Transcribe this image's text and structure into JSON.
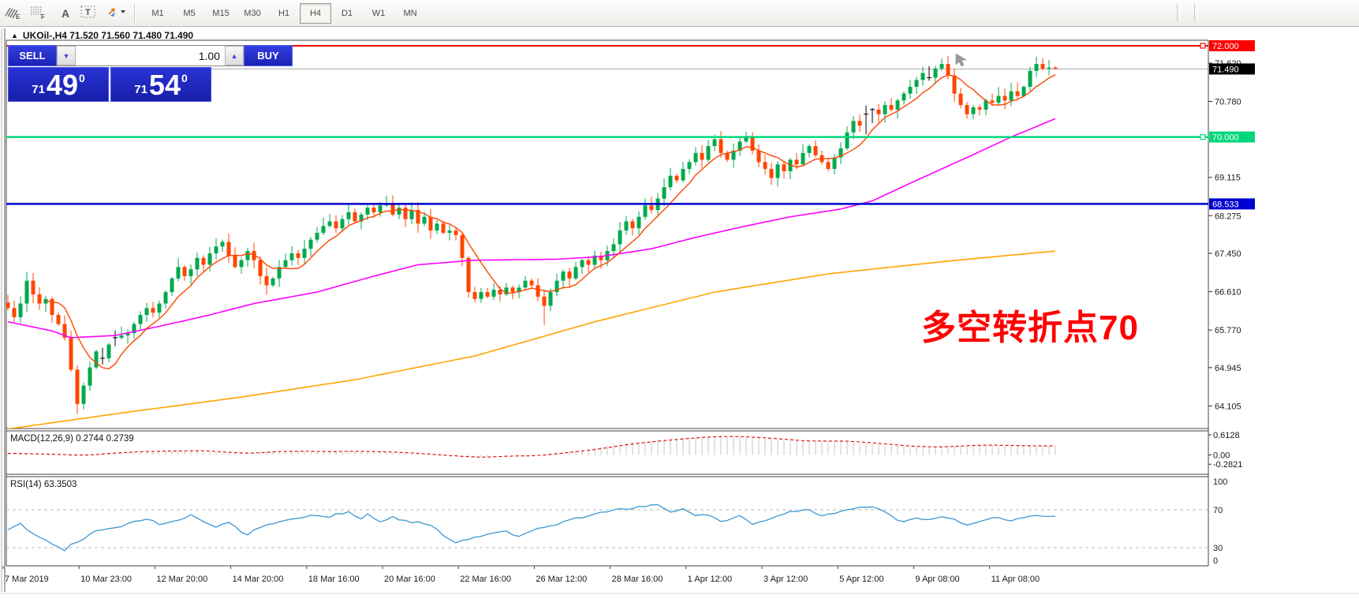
{
  "toolbar": {
    "icons": [
      {
        "name": "indicators-icon",
        "glyph": "E"
      },
      {
        "name": "templates-icon",
        "glyph": "F"
      },
      {
        "name": "text-label-icon",
        "glyph": "A"
      },
      {
        "name": "text-box-icon",
        "glyph": "T"
      },
      {
        "name": "arrows-objects-icon",
        "glyph": "▾"
      }
    ],
    "timeframes": [
      {
        "label": "M1",
        "active": false
      },
      {
        "label": "M5",
        "active": false
      },
      {
        "label": "M15",
        "active": false
      },
      {
        "label": "M30",
        "active": false
      },
      {
        "label": "H1",
        "active": false
      },
      {
        "label": "H4",
        "active": true
      },
      {
        "label": "D1",
        "active": false
      },
      {
        "label": "W1",
        "active": false
      },
      {
        "label": "MN",
        "active": false
      }
    ]
  },
  "symbol_bar": {
    "arrow": "▲",
    "title": "UKOil-,H4  71.520 71.560 71.480 71.490"
  },
  "trade_panel": {
    "sell_label": "SELL",
    "buy_label": "BUY",
    "volume": "1.00",
    "spin_down": "▼",
    "spin_up": "▲",
    "sell_price": {
      "small": "71",
      "big": "49",
      "sup": "0"
    },
    "buy_price": {
      "small": "71",
      "big": "54",
      "sup": "0"
    }
  },
  "annotation": {
    "text": "多空转折点70",
    "color": "#ff0000"
  },
  "colors": {
    "bull": "#00a94e",
    "bear": "#ff4500",
    "ma_fast": "#ff4500",
    "ma_mid": "#ff00ff",
    "ma_slow": "#ffa500",
    "level_red": "#ff0000",
    "level_green": "#00d77b",
    "level_blue": "#0000d0",
    "bid_line": "#aaaaaa",
    "black_doji": "#000000",
    "macd_hist": "#c4c4c4",
    "macd_signal": "#dd0000",
    "rsi_line": "#3b97d3",
    "chip_text": "#ffffff",
    "axis_text": "#1a1a1a"
  },
  "chart_data": {
    "type": "candlestick",
    "symbol": "UKOil-",
    "timeframe": "H4",
    "current_ohlc": {
      "open": 71.52,
      "high": 71.56,
      "low": 71.48,
      "close": 71.49
    },
    "bid": 71.49,
    "ask": 71.54,
    "ylim": [
      63.61,
      72.12
    ],
    "y_axis_ticks": [
      "71.620",
      "70.780",
      "69.115",
      "68.275",
      "67.450",
      "66.610",
      "65.770",
      "64.945",
      "64.105"
    ],
    "y_axis_tick_values": [
      71.62,
      70.78,
      69.115,
      68.275,
      67.45,
      66.61,
      65.77,
      64.945,
      64.105
    ],
    "levels": [
      {
        "price": 72.0,
        "label": "72.000",
        "color": "#ff0000",
        "width": 2,
        "marker": true
      },
      {
        "price": 70.0,
        "label": "70.000",
        "color": "#00d77b",
        "width": 2.5,
        "marker": true
      },
      {
        "price": 68.533,
        "label": "68.533",
        "color": "#0000d0",
        "width": 2.5,
        "marker": false
      },
      {
        "price": 71.49,
        "label": "71.490",
        "color": "#aaaaaa",
        "chip": "#000000",
        "width": 1,
        "marker": false,
        "is_bid": true
      }
    ],
    "x_axis_labels": [
      "7 Mar 2019",
      "10 Mar 23:00",
      "12 Mar 20:00",
      "14 Mar 20:00",
      "18 Mar 16:00",
      "20 Mar 16:00",
      "22 Mar 16:00",
      "26 Mar 12:00",
      "28 Mar 16:00",
      "1 Apr 12:00",
      "3 Apr 12:00",
      "5 Apr 12:00",
      "9 Apr 08:00",
      "11 Apr 08:00"
    ],
    "closes": [
      66.25,
      66.05,
      66.35,
      66.85,
      66.55,
      66.35,
      66.45,
      66.1,
      65.9,
      65.6,
      64.9,
      64.15,
      64.55,
      64.95,
      65.3,
      65.15,
      65.45,
      65.6,
      65.65,
      65.7,
      65.9,
      66.1,
      66.25,
      66.15,
      66.35,
      66.6,
      66.9,
      67.15,
      66.95,
      67.1,
      67.35,
      67.2,
      67.45,
      67.6,
      67.7,
      67.4,
      67.15,
      67.3,
      67.5,
      67.3,
      66.95,
      66.75,
      66.9,
      67.15,
      67.3,
      67.45,
      67.35,
      67.55,
      67.75,
      67.9,
      68.05,
      68.15,
      68.0,
      68.2,
      68.35,
      68.15,
      68.3,
      68.45,
      68.35,
      68.5,
      68.55,
      68.3,
      68.45,
      68.2,
      68.4,
      68.1,
      68.25,
      67.95,
      68.1,
      67.9,
      67.95,
      67.85,
      67.35,
      66.6,
      66.45,
      66.6,
      66.5,
      66.65,
      66.55,
      66.7,
      66.6,
      66.7,
      66.85,
      66.75,
      66.5,
      66.3,
      66.6,
      66.85,
      67.05,
      66.9,
      67.15,
      67.3,
      67.2,
      67.4,
      67.3,
      67.5,
      67.65,
      67.95,
      68.15,
      68.0,
      68.25,
      68.5,
      68.4,
      68.65,
      68.9,
      69.15,
      69.05,
      69.3,
      69.45,
      69.65,
      69.5,
      69.8,
      69.95,
      69.65,
      69.5,
      69.7,
      69.9,
      70.0,
      69.7,
      69.45,
      69.3,
      69.1,
      69.4,
      69.25,
      69.5,
      69.4,
      69.65,
      69.8,
      69.6,
      69.45,
      69.3,
      69.55,
      69.75,
      70.1,
      70.35,
      70.25,
      70.5,
      70.6,
      70.5,
      70.7,
      70.6,
      70.8,
      70.95,
      71.1,
      71.25,
      71.4,
      71.3,
      71.5,
      71.6,
      71.35,
      70.95,
      70.7,
      70.5,
      70.65,
      70.6,
      70.8,
      70.75,
      70.9,
      70.8,
      71.0,
      70.9,
      71.1,
      71.45,
      71.6,
      71.5,
      71.52,
      71.49
    ],
    "wick_overrides": {
      "11": {
        "low": 63.93
      },
      "85": {
        "low": 65.88
      },
      "112": {
        "high": 70.05
      },
      "121": {
        "low": 68.95
      },
      "148": {
        "high": 71.72
      },
      "166": {
        "high": 71.56,
        "low": 71.48
      }
    },
    "black_doji_bars": [
      15,
      17,
      136,
      137,
      146
    ],
    "moving_averages": {
      "fast": {
        "type": "sma_of_closes",
        "period": 7
      },
      "mid": {
        "anchors": [
          [
            0,
            65.95
          ],
          [
            7,
            65.75
          ],
          [
            10,
            65.6
          ],
          [
            17,
            65.65
          ],
          [
            24,
            65.85
          ],
          [
            32,
            66.1
          ],
          [
            39,
            66.35
          ],
          [
            49,
            66.6
          ],
          [
            58,
            66.95
          ],
          [
            65,
            67.2
          ],
          [
            74,
            67.3
          ],
          [
            87,
            67.32
          ],
          [
            94,
            67.38
          ],
          [
            102,
            67.55
          ],
          [
            109,
            67.8
          ],
          [
            117,
            68.05
          ],
          [
            124,
            68.25
          ],
          [
            132,
            68.42
          ],
          [
            137,
            68.6
          ],
          [
            144,
            69.05
          ],
          [
            152,
            69.55
          ],
          [
            159,
            70.0
          ],
          [
            166,
            70.4
          ]
        ]
      },
      "slow": {
        "anchors": [
          [
            0,
            63.6
          ],
          [
            18,
            63.95
          ],
          [
            37,
            64.3
          ],
          [
            55,
            64.68
          ],
          [
            74,
            65.2
          ],
          [
            93,
            65.95
          ],
          [
            112,
            66.6
          ],
          [
            130,
            67.0
          ],
          [
            149,
            67.28
          ],
          [
            166,
            67.5
          ]
        ]
      }
    },
    "macd": {
      "label": "MACD(12,26,9)",
      "value_main": "0.2744",
      "value_signal": "0.2739",
      "axis_labels": [
        "0.6128",
        "0.00",
        "-0.2821"
      ],
      "axis_values": [
        0.6128,
        0.0,
        -0.2821
      ],
      "anchors": [
        [
          0,
          0.04
        ],
        [
          7,
          0.02
        ],
        [
          10,
          -0.02
        ],
        [
          14,
          0.05
        ],
        [
          19,
          0.1
        ],
        [
          24,
          0.12
        ],
        [
          29,
          0.13
        ],
        [
          33,
          0.08
        ],
        [
          37,
          0.05
        ],
        [
          40,
          0.1
        ],
        [
          44,
          0.12
        ],
        [
          49,
          0.1
        ],
        [
          54,
          0.12
        ],
        [
          58,
          0.1
        ],
        [
          62,
          0.06
        ],
        [
          65,
          0.02
        ],
        [
          69,
          -0.03
        ],
        [
          72,
          -0.07
        ],
        [
          75,
          -0.06
        ],
        [
          78,
          -0.02
        ],
        [
          81,
          -0.04
        ],
        [
          84,
          0.02
        ],
        [
          88,
          0.1
        ],
        [
          92,
          0.18
        ],
        [
          95,
          0.28
        ],
        [
          99,
          0.38
        ],
        [
          103,
          0.46
        ],
        [
          107,
          0.52
        ],
        [
          110,
          0.56
        ],
        [
          114,
          0.57
        ],
        [
          118,
          0.52
        ],
        [
          122,
          0.46
        ],
        [
          125,
          0.42
        ],
        [
          129,
          0.44
        ],
        [
          133,
          0.4
        ],
        [
          137,
          0.34
        ],
        [
          140,
          0.28
        ],
        [
          144,
          0.24
        ],
        [
          148,
          0.26
        ],
        [
          152,
          0.3
        ],
        [
          155,
          0.3
        ],
        [
          159,
          0.28
        ],
        [
          163,
          0.275
        ],
        [
          166,
          0.2744
        ]
      ]
    },
    "rsi": {
      "label": "RSI(14)",
      "value": "63.3503",
      "axis_labels": [
        "100",
        "70",
        "30",
        "0"
      ],
      "guides": [
        70,
        30
      ],
      "anchors": [
        [
          0,
          48
        ],
        [
          2,
          55
        ],
        [
          4,
          45
        ],
        [
          6,
          38
        ],
        [
          8,
          31
        ],
        [
          9,
          27
        ],
        [
          10,
          33
        ],
        [
          12,
          40
        ],
        [
          14,
          47
        ],
        [
          17,
          51
        ],
        [
          19,
          55
        ],
        [
          22,
          61
        ],
        [
          24,
          55
        ],
        [
          27,
          59
        ],
        [
          29,
          65
        ],
        [
          31,
          57
        ],
        [
          33,
          52
        ],
        [
          35,
          57
        ],
        [
          37,
          47
        ],
        [
          38,
          44
        ],
        [
          40,
          52
        ],
        [
          42,
          56
        ],
        [
          43,
          58
        ],
        [
          46,
          61
        ],
        [
          48,
          65
        ],
        [
          51,
          62
        ],
        [
          52,
          65
        ],
        [
          54,
          67
        ],
        [
          56,
          61
        ],
        [
          57,
          65
        ],
        [
          59,
          58
        ],
        [
          61,
          62
        ],
        [
          64,
          57
        ],
        [
          65,
          57
        ],
        [
          67,
          54
        ],
        [
          69,
          43
        ],
        [
          71,
          35
        ],
        [
          73,
          39
        ],
        [
          75,
          43
        ],
        [
          77,
          45
        ],
        [
          79,
          47
        ],
        [
          81,
          41
        ],
        [
          82,
          46
        ],
        [
          84,
          50
        ],
        [
          87,
          55
        ],
        [
          89,
          60
        ],
        [
          92,
          63
        ],
        [
          94,
          67
        ],
        [
          96,
          70
        ],
        [
          98,
          71
        ],
        [
          100,
          73
        ],
        [
          103,
          75
        ],
        [
          105,
          67
        ],
        [
          107,
          71
        ],
        [
          109,
          63
        ],
        [
          111,
          65
        ],
        [
          113,
          57
        ],
        [
          116,
          65
        ],
        [
          118,
          55
        ],
        [
          120,
          59
        ],
        [
          122,
          64
        ],
        [
          124,
          68
        ],
        [
          127,
          70
        ],
        [
          129,
          64
        ],
        [
          132,
          68
        ],
        [
          134,
          72
        ],
        [
          137,
          74
        ],
        [
          139,
          67
        ],
        [
          141,
          59
        ],
        [
          142,
          57
        ],
        [
          144,
          61
        ],
        [
          146,
          59
        ],
        [
          148,
          62
        ],
        [
          150,
          60
        ],
        [
          152,
          53
        ],
        [
          154,
          58
        ],
        [
          156,
          62
        ],
        [
          158,
          60
        ],
        [
          159,
          58
        ],
        [
          161,
          62
        ],
        [
          163,
          64
        ],
        [
          166,
          63.35
        ]
      ]
    }
  }
}
